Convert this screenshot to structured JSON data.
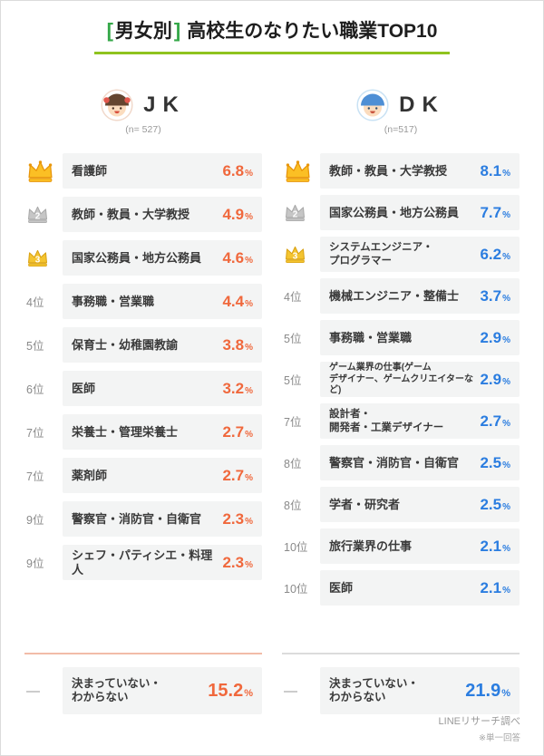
{
  "title": {
    "bracket_open": "[",
    "bracket_label": "男女別",
    "bracket_close": "]",
    "main": "高校生のなりたい職業TOP10"
  },
  "colors": {
    "accent_green": "#35a849",
    "underline_green": "#8fc31f",
    "jk_accent": "#f0683c",
    "dk_accent": "#2b7de0",
    "row_bg": "#f3f4f4",
    "crown_gold": "#fbbf24",
    "crown_silver": "#c6c6c6",
    "crown_bronze": "#f4c430"
  },
  "percent_sign": "%",
  "columns": [
    {
      "id": "jk",
      "label": "JK",
      "n_label": "(n= 527)",
      "accent": "#f0683c",
      "divider_color": "#f2bca8",
      "rows": [
        {
          "rank": "1",
          "crown": "gold",
          "job": "看護師",
          "value": "6.8"
        },
        {
          "rank": "2",
          "crown": "silver",
          "job": "教師・教員・大学教授",
          "value": "4.9"
        },
        {
          "rank": "3",
          "crown": "bronze",
          "job": "国家公務員・地方公務員",
          "value": "4.6"
        },
        {
          "rank": "4位",
          "job": "事務職・営業職",
          "value": "4.4"
        },
        {
          "rank": "5位",
          "job": "保育士・幼稚園教諭",
          "value": "3.8"
        },
        {
          "rank": "6位",
          "job": "医師",
          "value": "3.2"
        },
        {
          "rank": "7位",
          "job": "栄養士・管理栄養士",
          "value": "2.7"
        },
        {
          "rank": "7位",
          "job": "薬剤師",
          "value": "2.7"
        },
        {
          "rank": "9位",
          "job": "警察官・消防官・自衛官",
          "value": "2.3"
        },
        {
          "rank": "9位",
          "job": "シェフ・パティシエ・料理人",
          "value": "2.3"
        }
      ],
      "undecided": {
        "rank": "—",
        "job": "決まっていない・\nわからない",
        "value": "15.2"
      }
    },
    {
      "id": "dk",
      "label": "DK",
      "n_label": "(n=517)",
      "accent": "#2b7de0",
      "divider_color": "#dcdcdc",
      "rows": [
        {
          "rank": "1",
          "crown": "gold",
          "job": "教師・教員・大学教授",
          "value": "8.1"
        },
        {
          "rank": "2",
          "crown": "silver",
          "job": "国家公務員・地方公務員",
          "value": "7.7"
        },
        {
          "rank": "3",
          "crown": "bronze",
          "job": "システムエンジニア・\nプログラマー",
          "value": "6.2",
          "text_size": "sm"
        },
        {
          "rank": "4位",
          "job": "機械エンジニア・整備士",
          "value": "3.7"
        },
        {
          "rank": "5位",
          "job": "事務職・営業職",
          "value": "2.9"
        },
        {
          "rank": "5位",
          "job": "ゲーム業界の仕事(ゲーム\nデザイナー、ゲームクリエイターなど)",
          "value": "2.9",
          "text_size": "xs"
        },
        {
          "rank": "7位",
          "job": "設計者・\n開発者・工業デザイナー",
          "value": "2.7",
          "text_size": "sm"
        },
        {
          "rank": "8位",
          "job": "警察官・消防官・自衛官",
          "value": "2.5"
        },
        {
          "rank": "8位",
          "job": "学者・研究者",
          "value": "2.5"
        },
        {
          "rank": "10位",
          "job": "旅行業界の仕事",
          "value": "2.1"
        },
        {
          "rank": "10位",
          "job": "医師",
          "value": "2.1"
        }
      ],
      "undecided": {
        "rank": "—",
        "job": "決まっていない・\nわからない",
        "value": "21.9"
      }
    }
  ],
  "footer": {
    "source": "LINEリサーチ調べ",
    "note": "※単一回答"
  },
  "chart_data": {
    "type": "table",
    "title": "[男女別] 高校生のなりたい職業TOP10",
    "unit": "%",
    "groups": [
      {
        "name": "JK",
        "sample_size": 527,
        "ranking": [
          {
            "rank": 1,
            "job": "看護師",
            "value": 6.8
          },
          {
            "rank": 2,
            "job": "教師・教員・大学教授",
            "value": 4.9
          },
          {
            "rank": 3,
            "job": "国家公務員・地方公務員",
            "value": 4.6
          },
          {
            "rank": 4,
            "job": "事務職・営業職",
            "value": 4.4
          },
          {
            "rank": 5,
            "job": "保育士・幼稚園教諭",
            "value": 3.8
          },
          {
            "rank": 6,
            "job": "医師",
            "value": 3.2
          },
          {
            "rank": 7,
            "job": "栄養士・管理栄養士",
            "value": 2.7
          },
          {
            "rank": 7,
            "job": "薬剤師",
            "value": 2.7
          },
          {
            "rank": 9,
            "job": "警察官・消防官・自衛官",
            "value": 2.3
          },
          {
            "rank": 9,
            "job": "シェフ・パティシエ・料理人",
            "value": 2.3
          },
          {
            "rank": null,
            "job": "決まっていない・わからない",
            "value": 15.2
          }
        ]
      },
      {
        "name": "DK",
        "sample_size": 517,
        "ranking": [
          {
            "rank": 1,
            "job": "教師・教員・大学教授",
            "value": 8.1
          },
          {
            "rank": 2,
            "job": "国家公務員・地方公務員",
            "value": 7.7
          },
          {
            "rank": 3,
            "job": "システムエンジニア・プログラマー",
            "value": 6.2
          },
          {
            "rank": 4,
            "job": "機械エンジニア・整備士",
            "value": 3.7
          },
          {
            "rank": 5,
            "job": "事務職・営業職",
            "value": 2.9
          },
          {
            "rank": 5,
            "job": "ゲーム業界の仕事(ゲームデザイナー、ゲームクリエイターなど)",
            "value": 2.9
          },
          {
            "rank": 7,
            "job": "設計者・開発者・工業デザイナー",
            "value": 2.7
          },
          {
            "rank": 8,
            "job": "警察官・消防官・自衛官",
            "value": 2.5
          },
          {
            "rank": 8,
            "job": "学者・研究者",
            "value": 2.5
          },
          {
            "rank": 10,
            "job": "旅行業界の仕事",
            "value": 2.1
          },
          {
            "rank": 10,
            "job": "医師",
            "value": 2.1
          },
          {
            "rank": null,
            "job": "決まっていない・わからない",
            "value": 21.9
          }
        ]
      }
    ],
    "source": "LINEリサーチ調べ",
    "note": "※単一回答"
  }
}
